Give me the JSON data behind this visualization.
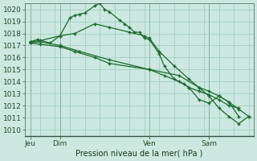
{
  "background_color": "#cce8e0",
  "grid_color": "#99ccbb",
  "line_color": "#1a6b2a",
  "title": "Pression niveau de la mer( hPa )",
  "ylabel_values": [
    1010,
    1011,
    1012,
    1013,
    1014,
    1015,
    1016,
    1017,
    1018,
    1019,
    1020
  ],
  "ylim": [
    1009.5,
    1020.5
  ],
  "x_tick_positions": [
    0,
    12,
    48,
    72
  ],
  "x_tick_labels": [
    "Jeu",
    "Dim",
    "Ven",
    "Sam"
  ],
  "xlim": [
    -2,
    90
  ],
  "series1_x": [
    0,
    3,
    8,
    12,
    16,
    18,
    20,
    22,
    26,
    28,
    30,
    32,
    36,
    38,
    40,
    42,
    44,
    46,
    48,
    52,
    54,
    58,
    62,
    64,
    68,
    72,
    76,
    80,
    84
  ],
  "series1_y": [
    1017.3,
    1017.5,
    1017.2,
    1017.8,
    1019.3,
    1019.5,
    1019.6,
    1019.7,
    1020.3,
    1020.5,
    1020.0,
    1019.8,
    1019.1,
    1018.8,
    1018.5,
    1018.1,
    1018.1,
    1017.6,
    1017.5,
    1016.3,
    1015.3,
    1014.2,
    1013.8,
    1013.5,
    1013.2,
    1012.9,
    1012.5,
    1012.0,
    1011.8
  ],
  "series2_x": [
    0,
    4,
    12,
    18,
    26,
    32,
    48,
    54,
    60,
    64,
    68,
    72,
    76,
    80,
    84
  ],
  "series2_y": [
    1017.2,
    1017.1,
    1016.9,
    1016.5,
    1016.0,
    1015.5,
    1015.0,
    1014.5,
    1014.0,
    1013.5,
    1012.5,
    1012.2,
    1012.8,
    1012.3,
    1011.1
  ],
  "series3_x": [
    0,
    4,
    12,
    18,
    26,
    32,
    40,
    46,
    48,
    52,
    58,
    64,
    68,
    72,
    76,
    80,
    84,
    88
  ],
  "series3_y": [
    1017.3,
    1017.4,
    1017.8,
    1018.0,
    1018.8,
    1018.5,
    1018.1,
    1017.8,
    1017.6,
    1016.5,
    1015.3,
    1014.2,
    1013.5,
    1013.2,
    1012.8,
    1012.3,
    1011.7,
    1011.1
  ],
  "series4_x": [
    0,
    4,
    12,
    20,
    32,
    48,
    60,
    68,
    72,
    76,
    80,
    84,
    88
  ],
  "series4_y": [
    1017.2,
    1017.3,
    1017.0,
    1016.5,
    1015.8,
    1015.0,
    1014.5,
    1013.5,
    1012.8,
    1011.8,
    1011.1,
    1010.5,
    1011.1
  ],
  "figsize": [
    3.2,
    2.0
  ],
  "dpi": 100
}
